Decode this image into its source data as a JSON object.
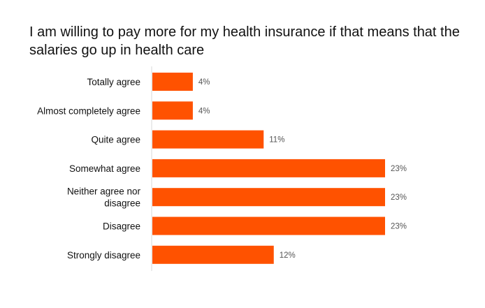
{
  "chart_data": {
    "type": "bar",
    "orientation": "horizontal",
    "title": "I am willing to pay more for my health insurance if that means that the salaries go up in health care",
    "categories": [
      "Totally agree",
      "Almost completely agree",
      "Quite agree",
      "Somewhat agree",
      "Neither agree nor disagree",
      "Disagree",
      "Strongly disagree"
    ],
    "values": [
      4,
      4,
      11,
      23,
      23,
      23,
      12
    ],
    "value_labels": [
      "4%",
      "4%",
      "11%",
      "23%",
      "23%",
      "23%",
      "12%"
    ],
    "value_unit": "%",
    "xlabel": "",
    "ylabel": "",
    "grid": false,
    "legend": "none",
    "bar_color": "#FF5200"
  }
}
